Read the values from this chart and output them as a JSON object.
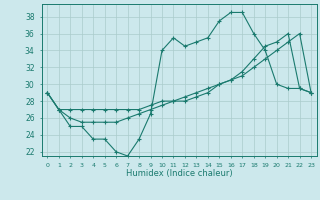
{
  "xlabel": "Humidex (Indice chaleur)",
  "bg_color": "#cce8ec",
  "grid_color": "#aacccc",
  "line_color": "#1a7a6e",
  "xlim": [
    -0.5,
    23.5
  ],
  "ylim": [
    21.5,
    39.5
  ],
  "yticks": [
    22,
    24,
    26,
    28,
    30,
    32,
    34,
    36,
    38
  ],
  "xticks": [
    0,
    1,
    2,
    3,
    4,
    5,
    6,
    7,
    8,
    9,
    10,
    11,
    12,
    13,
    14,
    15,
    16,
    17,
    18,
    19,
    20,
    21,
    22,
    23
  ],
  "series1": [
    29,
    27,
    25,
    25,
    23.5,
    23.5,
    22,
    21.5,
    23.5,
    26.5,
    34,
    35.5,
    34.5,
    35,
    35.5,
    37.5,
    38.5,
    38.5,
    36,
    34,
    30,
    29.5,
    29.5,
    29
  ],
  "series2": [
    29,
    27,
    27,
    27,
    27,
    27,
    27,
    27,
    27,
    27.5,
    28,
    28,
    28,
    28.5,
    29,
    30,
    30.5,
    31,
    32,
    33,
    34,
    35,
    36,
    29
  ],
  "series3": [
    29,
    27,
    26,
    25.5,
    25.5,
    25.5,
    25.5,
    26,
    26.5,
    27,
    27.5,
    28,
    28.5,
    29,
    29.5,
    30,
    30.5,
    31.5,
    33,
    34.5,
    35,
    36,
    29.5,
    29
  ]
}
